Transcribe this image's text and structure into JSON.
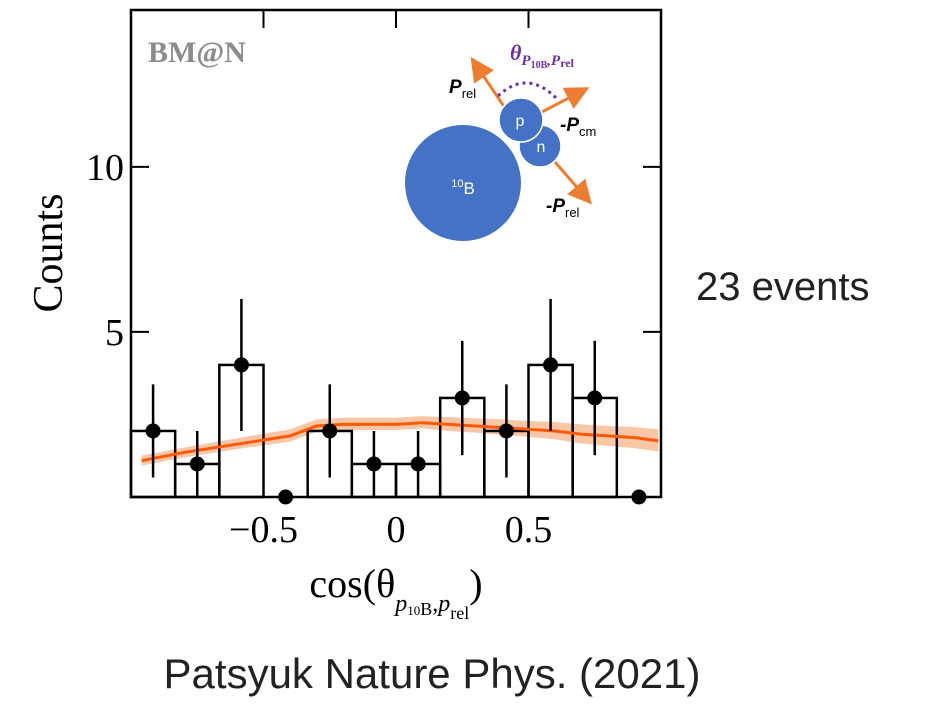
{
  "chart_data": {
    "type": "histogram",
    "label": "BM@N",
    "ylabel": "Counts",
    "xlabel": [
      "cos(θ",
      "p",
      "10",
      "B",
      ",",
      "p",
      "rel",
      ")"
    ],
    "bins": [
      -1,
      -0.8333,
      -0.6667,
      -0.5,
      -0.3333,
      -0.1667,
      0,
      0.1667,
      0.3333,
      0.5,
      0.6667,
      0.8333,
      1
    ],
    "values": [
      2,
      1,
      4,
      0,
      2,
      1,
      1,
      3,
      2,
      4,
      3,
      0
    ],
    "errors": [
      1.41,
      1,
      2,
      0,
      1.41,
      1,
      1,
      1.73,
      1.41,
      2,
      1.73,
      0
    ],
    "color": "#000000",
    "xlim": [
      -1,
      1
    ],
    "ylim": [
      0,
      14.75
    ],
    "xticks": [
      {
        "value": -0.5,
        "label": "−0.5"
      },
      0,
      0.5
    ],
    "yticks": [
      5,
      10
    ],
    "fit": {
      "color": "#ff5a00",
      "band_color": "#f9c6a6",
      "x": [
        -0.96,
        -0.8,
        -0.6,
        -0.4,
        -0.3,
        -0.2,
        -0.1,
        0,
        0.1,
        0.2,
        0.3,
        0.4,
        0.5,
        0.6,
        0.7,
        0.8,
        0.9,
        0.99
      ],
      "values": [
        1.1,
        1.35,
        1.6,
        1.85,
        2.15,
        2.2,
        2.2,
        2.2,
        2.25,
        2.2,
        2.15,
        2.1,
        2.05,
        2.0,
        1.9,
        1.85,
        1.8,
        1.7
      ],
      "lower": [
        0.95,
        1.2,
        1.45,
        1.68,
        1.98,
        2.03,
        2.03,
        2.03,
        2.08,
        2.0,
        1.95,
        1.88,
        1.82,
        1.75,
        1.62,
        1.55,
        1.48,
        1.38
      ],
      "upper": [
        1.25,
        1.5,
        1.78,
        2.05,
        2.35,
        2.4,
        2.4,
        2.4,
        2.45,
        2.42,
        2.38,
        2.35,
        2.3,
        2.27,
        2.2,
        2.15,
        2.12,
        2.05
      ]
    }
  },
  "inset": {
    "nucleus": [
      "10",
      "B"
    ],
    "proton": "p",
    "neutron": "n",
    "p_rel": [
      "P",
      "rel"
    ],
    "minus_p_cm": [
      "-P",
      "cm"
    ],
    "minus_p_rel": [
      "-P",
      "rel"
    ],
    "angle": [
      "θ",
      "P",
      "10",
      "B",
      ",",
      "P",
      "rel"
    ]
  },
  "side_note": "23 events",
  "citation": "Patsyuk Nature Phys. (2021)"
}
